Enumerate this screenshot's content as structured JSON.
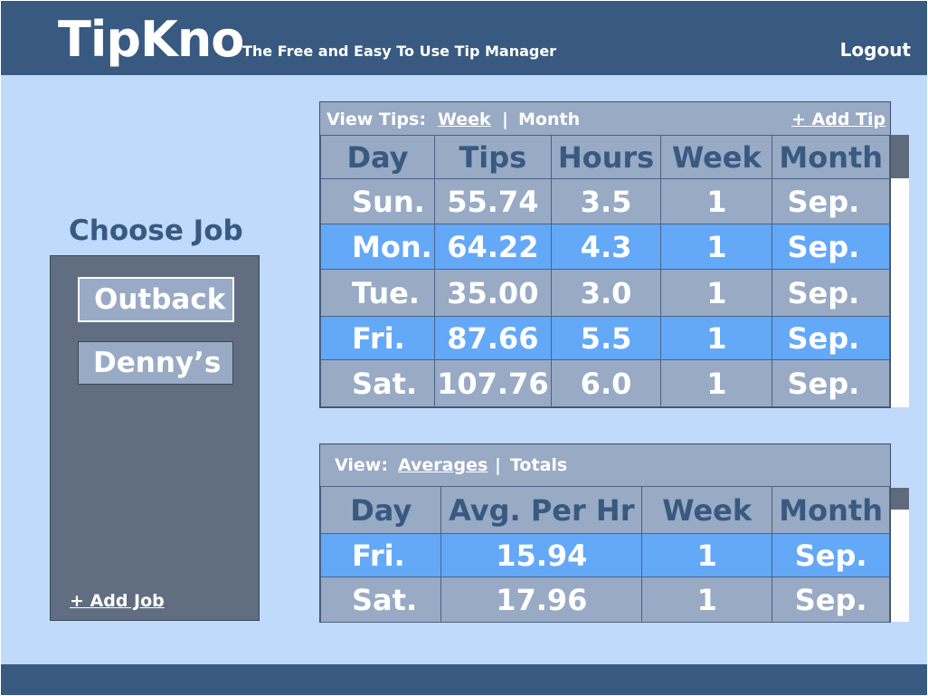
{
  "app": {
    "brand": "TipKno",
    "tagline": "The Free and Easy To Use Tip Manager",
    "logout_label": "Logout"
  },
  "jobs": {
    "title": "Choose Job",
    "items": [
      "Outback",
      "Denny’s"
    ],
    "selected": "Outback",
    "add_label": "+ Add Job"
  },
  "tips_view": {
    "label": "View Tips:",
    "week_label": "Week",
    "separator": "|",
    "month_label": "Month",
    "add_tip_label": "+ Add Tip",
    "headers": [
      "Day",
      "Tips",
      "Hours",
      "Week",
      "Month"
    ],
    "rows": [
      {
        "day": "Sun.",
        "tips": "55.74",
        "hours": "3.5",
        "week": "1",
        "month": "Sep."
      },
      {
        "day": "Mon.",
        "tips": "64.22",
        "hours": "4.3",
        "week": "1",
        "month": "Sep."
      },
      {
        "day": "Tue.",
        "tips": "35.00",
        "hours": "3.0",
        "week": "1",
        "month": "Sep."
      },
      {
        "day": "Fri.",
        "tips": "87.66",
        "hours": "5.5",
        "week": "1",
        "month": "Sep."
      },
      {
        "day": "Sat.",
        "tips": "107.76",
        "hours": "6.0",
        "week": "1",
        "month": "Sep."
      }
    ]
  },
  "stats_view": {
    "label": "View:",
    "averages_label": "Averages",
    "separator": "|",
    "totals_label": "Totals",
    "headers": [
      "Day",
      "Avg. Per Hr",
      "Week",
      "Month"
    ],
    "rows": [
      {
        "day": "Fri.",
        "avg": "15.94",
        "week": "1",
        "month": "Sep."
      },
      {
        "day": "Sat.",
        "avg": "17.96",
        "week": "1",
        "month": "Sep."
      }
    ]
  },
  "colors": {
    "header_bar": "#385980",
    "background": "#c0dafc",
    "panel": "#98aac4",
    "highlight_row": "#64a8f8",
    "job_panel": "#616d80"
  }
}
